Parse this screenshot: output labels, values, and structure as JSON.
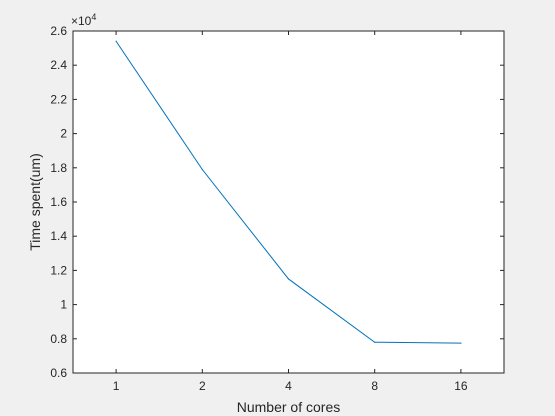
{
  "chart_data": {
    "type": "line",
    "x_categories": [
      "1",
      "2",
      "4",
      "8",
      "16"
    ],
    "series": [
      {
        "values": [
          25400,
          17900,
          11500,
          7800,
          7750
        ],
        "color": "#0072BD"
      }
    ],
    "xlabel": "Number of cores",
    "ylabel": "Time spent(um)",
    "ylim": [
      6000,
      26000
    ],
    "y_ticks": [
      {
        "value": 6000,
        "label": "0.6"
      },
      {
        "value": 8000,
        "label": "0.8"
      },
      {
        "value": 10000,
        "label": "1"
      },
      {
        "value": 12000,
        "label": "1.2"
      },
      {
        "value": 14000,
        "label": "1.4"
      },
      {
        "value": 16000,
        "label": "1.6"
      },
      {
        "value": 18000,
        "label": "1.8"
      },
      {
        "value": 20000,
        "label": "2"
      },
      {
        "value": 22000,
        "label": "2.2"
      },
      {
        "value": 24000,
        "label": "2.4"
      },
      {
        "value": 26000,
        "label": "2.6"
      }
    ],
    "y_exponent_base": "×10",
    "y_exponent_power": "4",
    "grid": false,
    "background": "#ffffff",
    "figure_background": "#f0f0f0"
  }
}
